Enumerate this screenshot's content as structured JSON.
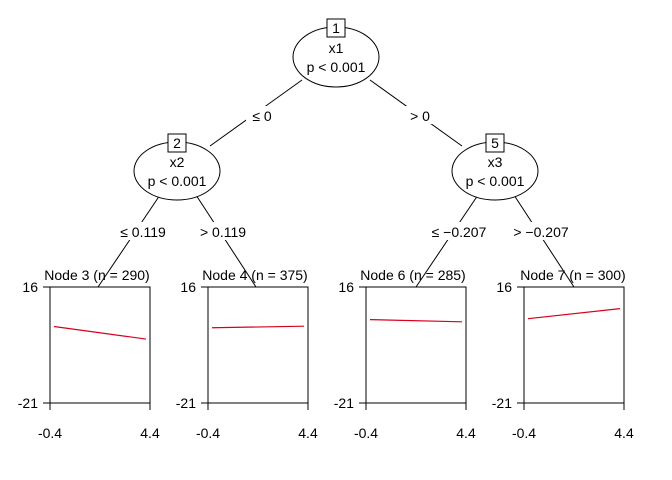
{
  "tree": {
    "inner_nodes": [
      {
        "id": "1",
        "var": "x1",
        "p": "p < 0.001"
      },
      {
        "id": "2",
        "var": "x2",
        "p": "p < 0.001"
      },
      {
        "id": "5",
        "var": "x3",
        "p": "p < 0.001"
      }
    ],
    "edges": [
      {
        "label": "≤ 0"
      },
      {
        "label": "> 0"
      },
      {
        "label": "≤ 0.119"
      },
      {
        "label": "> 0.119"
      },
      {
        "label": "≤ −0.207"
      },
      {
        "label": "> −0.207"
      }
    ],
    "terminal_nodes": [
      {
        "title": "Node 3 (n = 290)",
        "ytop": "16",
        "ybot": "-21",
        "xleft": "-0.4",
        "xright": "4.4",
        "fit": {
          "x": [
            -0.4,
            4.4
          ],
          "y": [
            3.4,
            -0.6
          ]
        }
      },
      {
        "title": "Node 4 (n = 375)",
        "ytop": "16",
        "ybot": "-21",
        "xleft": "-0.4",
        "xright": "4.4",
        "fit": {
          "x": [
            -0.4,
            4.4
          ],
          "y": [
            3.0,
            3.5
          ]
        }
      },
      {
        "title": "Node 6 (n = 285)",
        "ytop": "16",
        "ybot": "-21",
        "xleft": "-0.4",
        "xright": "4.4",
        "fit": {
          "x": [
            -0.4,
            4.4
          ],
          "y": [
            5.6,
            4.9
          ]
        }
      },
      {
        "title": "Node 7 (n = 300)",
        "ytop": "16",
        "ybot": "-21",
        "xleft": "-0.4",
        "xright": "4.4",
        "fit": {
          "x": [
            -0.4,
            4.4
          ],
          "y": [
            5.9,
            9.1
          ]
        }
      }
    ],
    "y_range": [
      -21,
      16
    ],
    "x_range": [
      -0.4,
      4.4
    ],
    "fit_color": "#d9001b"
  }
}
